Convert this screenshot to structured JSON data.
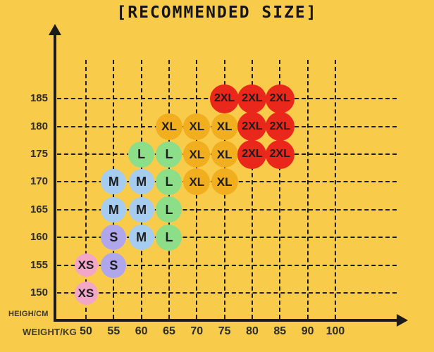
{
  "colors": {
    "background": "#F9CB4A",
    "axis": "#1b1b1b",
    "grid": "#1c1c1c",
    "tick_text": "#2b2b2b",
    "axis_label_text": "#3d3a30",
    "bubble_text": "#1d1d1d"
  },
  "chart_data": {
    "type": "scatter",
    "title": "[RECOMMENDED SIZE]",
    "xlabel": "WEIGHT/KG",
    "ylabel": "HEIGH/CM",
    "grid": true,
    "x_ticks": [
      "50",
      "55",
      "60",
      "65",
      "70",
      "75",
      "80",
      "85",
      "90",
      "100"
    ],
    "y_ticks": [
      "150",
      "155",
      "160",
      "165",
      "170",
      "175",
      "180",
      "185"
    ],
    "series": [
      {
        "name": "XS",
        "color": "#F2A6C8",
        "diameter": 33,
        "points": [
          [
            50,
            150
          ],
          [
            50,
            155
          ]
        ]
      },
      {
        "name": "S",
        "color": "#B0A6EC",
        "diameter": 36,
        "points": [
          [
            55,
            155
          ],
          [
            55,
            160
          ]
        ]
      },
      {
        "name": "M",
        "color": "#A6CCF0",
        "diameter": 36,
        "points": [
          [
            60,
            160
          ],
          [
            55,
            165
          ],
          [
            60,
            165
          ],
          [
            55,
            170
          ],
          [
            60,
            170
          ]
        ]
      },
      {
        "name": "L",
        "color": "#8CDF88",
        "diameter": 37,
        "points": [
          [
            65,
            160
          ],
          [
            65,
            165
          ],
          [
            65,
            170
          ],
          [
            60,
            175
          ],
          [
            65,
            175
          ]
        ]
      },
      {
        "name": "XL",
        "color": "#F1AE1E",
        "diameter": 38,
        "points": [
          [
            70,
            170
          ],
          [
            75,
            170
          ],
          [
            70,
            175
          ],
          [
            75,
            175
          ],
          [
            65,
            180
          ],
          [
            70,
            180
          ],
          [
            75,
            180
          ]
        ]
      },
      {
        "name": "2XL",
        "color": "#E9271B",
        "diameter": 41,
        "points": [
          [
            80,
            175
          ],
          [
            85,
            175
          ],
          [
            80,
            180
          ],
          [
            85,
            180
          ],
          [
            75,
            185
          ],
          [
            80,
            185
          ],
          [
            85,
            185
          ]
        ]
      }
    ]
  }
}
